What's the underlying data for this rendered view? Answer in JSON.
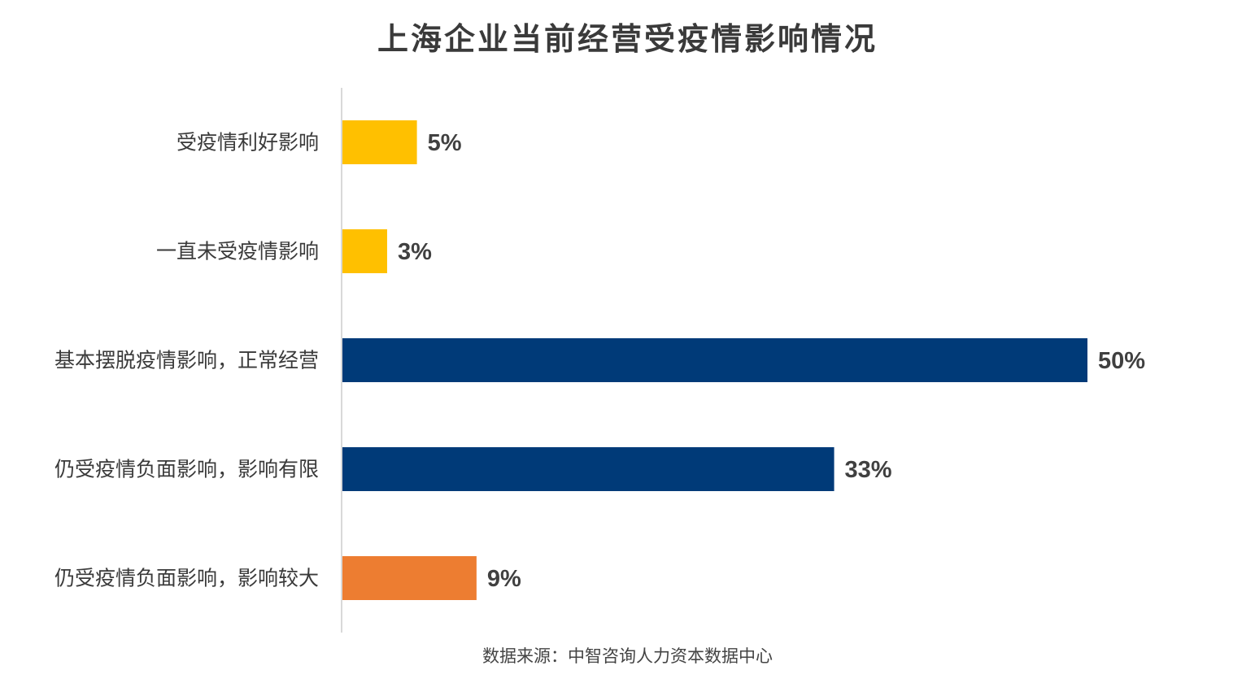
{
  "chart_data": {
    "type": "bar",
    "orientation": "horizontal",
    "title": "上海企业当前经营受疫情影响情况",
    "xlabel": "",
    "ylabel": "",
    "categories": [
      "受疫情利好影响",
      "一直未受疫情影响",
      "基本摆脱疫情影响，正常经营",
      "仍受疫情负面影响，影响有限",
      "仍受疫情负面影响，影响较大"
    ],
    "values": [
      5,
      3,
      50,
      33,
      9
    ],
    "value_labels": [
      "5%",
      "3%",
      "50%",
      "33%",
      "9%"
    ],
    "unit": "%",
    "bar_colors": [
      "#FFC000",
      "#FFC000",
      "#003A78",
      "#003A78",
      "#ED7D31"
    ],
    "xlim": [
      0,
      50
    ],
    "grid": false,
    "legend": "none"
  },
  "colors": {
    "axis_line": "#D9D9D9",
    "label_text": "#3A3A3A",
    "value_text": "#404040"
  },
  "source": "数据来源：中智咨询人力资本数据中心"
}
